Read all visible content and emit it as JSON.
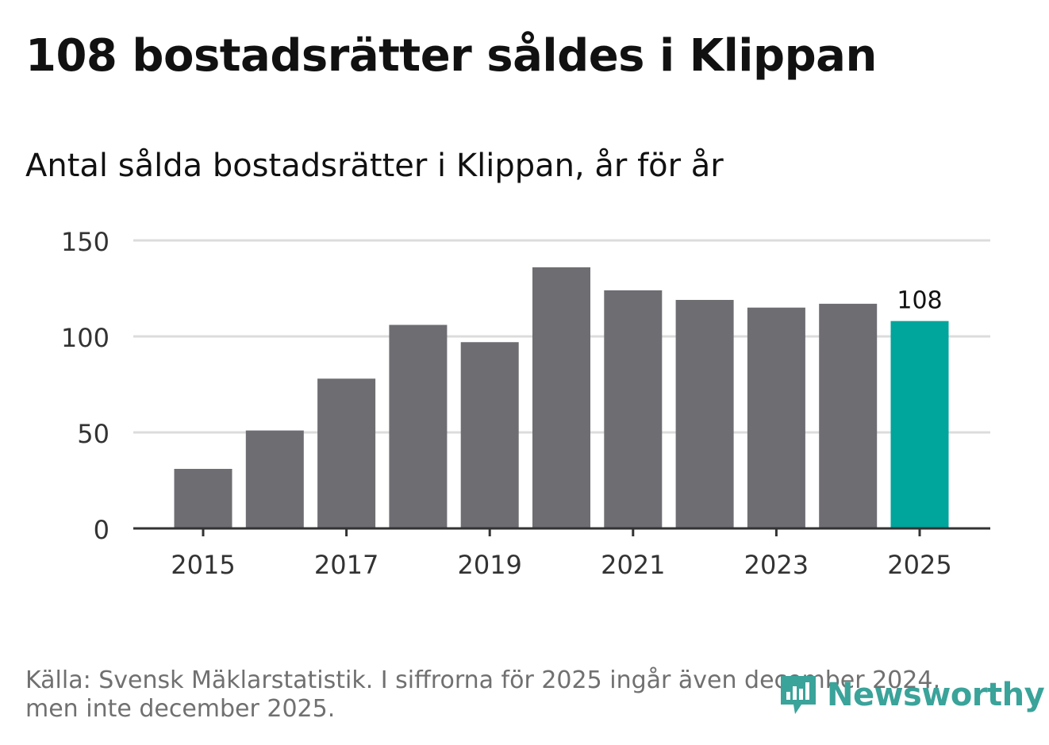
{
  "chart_data": {
    "type": "bar",
    "title": "108 bostadsrätter såldes i Klippan",
    "subtitle": "Antal sålda bostadsrätter i Klippan, år för år",
    "categories": [
      "2015",
      "2016",
      "2017",
      "2018",
      "2019",
      "2020",
      "2021",
      "2022",
      "2023",
      "2024",
      "2025"
    ],
    "values": [
      31,
      51,
      78,
      106,
      97,
      136,
      124,
      119,
      115,
      117,
      108
    ],
    "x_tick_labels": [
      "2015",
      "2017",
      "2019",
      "2021",
      "2023",
      "2025"
    ],
    "y_ticks": [
      0,
      50,
      100,
      150
    ],
    "ylim": [
      0,
      150
    ],
    "xlabel": "",
    "ylabel": "",
    "grid": true,
    "highlight_index": 10,
    "highlight_label": "108",
    "colors": {
      "bar": "#6e6d72",
      "highlight": "#00a59b",
      "grid": "#dcdcdc",
      "axis": "#333333"
    }
  },
  "footer": {
    "source_line1": "Källa: Svensk Mäklarstatistik. I siffrorna för 2025 ingår även december 2024,",
    "source_line2": "men inte december 2025."
  },
  "logo": {
    "text": "Newsworthy",
    "icon": "newsworthy-chart-icon",
    "color": "#3aa39a"
  }
}
